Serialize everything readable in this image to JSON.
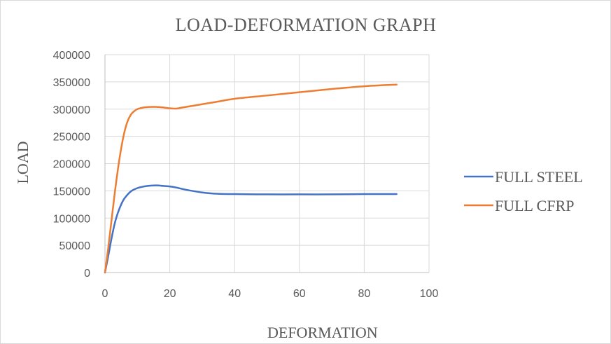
{
  "chart_data": {
    "type": "line",
    "title": "LOAD-DEFORMATION GRAPH",
    "xlabel": "DEFORMATION",
    "ylabel": "LOAD",
    "xlim": [
      0,
      100
    ],
    "ylim": [
      0,
      400000
    ],
    "xticks": [
      0,
      20,
      40,
      60,
      80,
      100
    ],
    "yticks": [
      0,
      50000,
      100000,
      150000,
      200000,
      250000,
      300000,
      350000,
      400000
    ],
    "grid": true,
    "legend_position": "right",
    "series": [
      {
        "name": "FULL STEEL",
        "color": "#4472C4",
        "x": [
          0,
          1,
          2,
          3,
          4,
          5,
          6,
          8,
          10,
          12,
          14,
          16,
          18,
          20,
          22,
          25,
          30,
          35,
          40,
          50,
          60,
          70,
          80,
          90
        ],
        "y": [
          0,
          30000,
          62000,
          90000,
          110000,
          125000,
          136000,
          149000,
          155000,
          158000,
          159500,
          160000,
          159000,
          158000,
          156000,
          152000,
          147000,
          144500,
          144000,
          143500,
          143500,
          143500,
          144000,
          144000
        ]
      },
      {
        "name": "FULL CFRP",
        "color": "#ED7D31",
        "x": [
          0,
          1,
          2,
          3,
          4,
          5,
          6,
          7,
          8,
          9,
          10,
          12,
          14,
          16,
          18,
          20,
          22,
          24,
          27,
          30,
          35,
          40,
          50,
          60,
          70,
          80,
          90
        ],
        "y": [
          0,
          45000,
          95000,
          145000,
          190000,
          228000,
          258000,
          278000,
          290000,
          296000,
          300000,
          303000,
          304000,
          304000,
          303000,
          301500,
          301000,
          303000,
          306000,
          309000,
          314000,
          319000,
          325000,
          331000,
          337000,
          342000,
          345000
        ]
      }
    ]
  }
}
